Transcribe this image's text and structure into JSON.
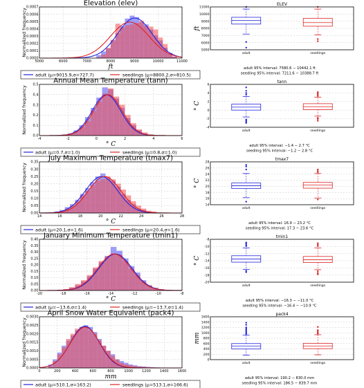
{
  "colors": {
    "adult": "#2222dd",
    "seedlings": "#dd2222",
    "adult_fill": "#4d4df2",
    "seedlings_fill": "#f04a4a"
  },
  "chart_data": [
    {
      "type": "bar",
      "title": "Elevation (elev)",
      "xlabel": "ft",
      "ylabel": "Normalized frequency",
      "xlim": [
        5000,
        11000
      ],
      "ylim": [
        0,
        0.0007
      ],
      "xticks": [
        "5000",
        "6000",
        "7000",
        "8000",
        "9000",
        "10000",
        "11000"
      ],
      "yticks": [
        "0.0000",
        "0.0001",
        "0.0002",
        "0.0003",
        "0.0004",
        "0.0005",
        "0.0006",
        "0.0007"
      ],
      "bin_edges": [
        7400,
        7600,
        7800,
        8000,
        8200,
        8400,
        8600,
        8800,
        9000,
        9200,
        9400,
        9600,
        9800,
        10000,
        10200,
        10400,
        10600,
        10800
      ],
      "series": [
        {
          "name": "adult",
          "values": [
            4e-05,
            9e-05,
            0.00013,
            0.00024,
            0.00034,
            0.00044,
            0.00054,
            0.00058,
            0.00056,
            0.00049,
            0.00046,
            0.00039,
            0.00031,
            0.00024,
            0.00014,
            7e-05,
            2e-05
          ],
          "mu": 9015.9,
          "sigma": 727.7,
          "legend": "adult (μ=9015.9,σ=727.7)"
        },
        {
          "name": "seedlings",
          "values": [
            1e-05,
            5e-05,
            0.00014,
            0.00025,
            0.00047,
            0.00042,
            0.00045,
            0.00046,
            0.00048,
            0.00051,
            0.00044,
            0.00043,
            0.00039,
            0.00028,
            0.00019,
            7e-05,
            2e-05
          ],
          "mu": 8800.2,
          "sigma": 810.5,
          "legend": "seedlings (μ=8800.2,σ=810.5)"
        }
      ]
    },
    {
      "type": "bar",
      "title": "Annual Mean Temperature (tann)",
      "xlabel": "° C",
      "ylabel": "Normalized frequency",
      "xlim": [
        -4,
        6
      ],
      "ylim": [
        0,
        0.5
      ],
      "xticks": [
        "-4",
        "-2",
        "0",
        "2",
        "4",
        "6"
      ],
      "yticks": [
        "0.0",
        "0.1",
        "0.2",
        "0.3",
        "0.4",
        "0.5"
      ],
      "bin_edges": [
        -2.4,
        -2.0,
        -1.6,
        -1.2,
        -0.8,
        -0.4,
        0.0,
        0.4,
        0.8,
        1.2,
        1.6,
        2.0,
        2.4,
        2.8,
        3.2,
        3.6,
        4.0
      ],
      "series": [
        {
          "name": "adult",
          "values": [
            0.01,
            0.02,
            0.05,
            0.1,
            0.18,
            0.27,
            0.37,
            0.47,
            0.45,
            0.36,
            0.27,
            0.17,
            0.1,
            0.05,
            0.02,
            0.01
          ],
          "mu": 0.7,
          "sigma": 1.0,
          "legend": "adult (μ=0.7,σ=1.0)"
        },
        {
          "name": "seedlings",
          "values": [
            0.01,
            0.02,
            0.04,
            0.08,
            0.14,
            0.24,
            0.33,
            0.41,
            0.46,
            0.38,
            0.3,
            0.2,
            0.12,
            0.06,
            0.03,
            0.01
          ],
          "mu": 0.8,
          "sigma": 1.0,
          "legend": "seedlings (μ=0.8,σ=1.0)"
        }
      ]
    },
    {
      "type": "bar",
      "title": "July Maximum Temperature (tmax7)",
      "xlabel": "° C",
      "ylabel": "Normalized frequency",
      "xlim": [
        14,
        28
      ],
      "ylim": [
        0,
        0.35
      ],
      "xticks": [
        "14",
        "16",
        "18",
        "20",
        "22",
        "24",
        "26",
        "28"
      ],
      "yticks": [
        "0.00",
        "0.05",
        "0.10",
        "0.15",
        "0.20",
        "0.25",
        "0.30",
        "0.35"
      ],
      "bin_edges": [
        15.5,
        16.0,
        16.5,
        17.0,
        17.5,
        18.0,
        18.5,
        19.0,
        19.5,
        20.0,
        20.5,
        21.0,
        21.5,
        22.0,
        22.5,
        23.0,
        23.5,
        24.0,
        24.5,
        25.0,
        25.5
      ],
      "series": [
        {
          "name": "adult",
          "values": [
            0.01,
            0.02,
            0.04,
            0.06,
            0.09,
            0.13,
            0.17,
            0.21,
            0.25,
            0.27,
            0.24,
            0.22,
            0.18,
            0.13,
            0.09,
            0.06,
            0.03,
            0.02,
            0.01,
            0.005
          ],
          "mu": 20.1,
          "sigma": 1.6,
          "legend": "adult (μ=20.1,σ=1.6)"
        },
        {
          "name": "seedlings",
          "values": [
            0.005,
            0.015,
            0.03,
            0.05,
            0.08,
            0.12,
            0.15,
            0.19,
            0.22,
            0.23,
            0.25,
            0.23,
            0.2,
            0.16,
            0.12,
            0.08,
            0.05,
            0.03,
            0.015,
            0.01
          ],
          "mu": 20.4,
          "sigma": 1.6,
          "legend": "seedlings (μ=20.4,σ=1.6)"
        }
      ]
    },
    {
      "type": "bar",
      "title": "January Minimum Temperature (tmin1)",
      "xlabel": "° C",
      "ylabel": "Normalized frequency",
      "xlim": [
        -20,
        -8
      ],
      "ylim": [
        0,
        0.4
      ],
      "xticks": [
        "-20",
        "-18",
        "-16",
        "-14",
        "-12",
        "-10",
        "-8"
      ],
      "yticks": [
        "0.00",
        "0.05",
        "0.10",
        "0.15",
        "0.20",
        "0.25",
        "0.30",
        "0.35",
        "0.40"
      ],
      "bin_edges": [
        -18.5,
        -18.0,
        -17.5,
        -17.0,
        -16.5,
        -16.0,
        -15.5,
        -15.0,
        -14.5,
        -14.0,
        -13.5,
        -13.0,
        -12.5,
        -12.0,
        -11.5,
        -11.0,
        -10.5,
        -10.0,
        -9.5
      ],
      "series": [
        {
          "name": "adult",
          "values": [
            0.005,
            0.01,
            0.02,
            0.04,
            0.07,
            0.11,
            0.17,
            0.22,
            0.27,
            0.34,
            0.31,
            0.25,
            0.19,
            0.14,
            0.08,
            0.04,
            0.02,
            0.01
          ],
          "mu": -13.6,
          "sigma": 1.4,
          "legend": "adult (μ=−13.6,σ=1.4)"
        },
        {
          "name": "seedlings",
          "values": [
            0.005,
            0.01,
            0.025,
            0.05,
            0.08,
            0.12,
            0.18,
            0.23,
            0.26,
            0.29,
            0.28,
            0.23,
            0.17,
            0.12,
            0.07,
            0.04,
            0.02,
            0.01
          ],
          "mu": -13.7,
          "sigma": 1.4,
          "legend": "seedlings (μ=−13.7,σ=1.4)"
        }
      ]
    },
    {
      "type": "bar",
      "title": "April Snow Water Equivalent (pack4)",
      "xlabel": "mm",
      "ylabel": "Normalized frequency",
      "xlim": [
        0,
        1600
      ],
      "ylim": [
        0,
        0.003
      ],
      "xticks": [
        "0",
        "200",
        "400",
        "600",
        "800",
        "1000",
        "1200",
        "1400",
        "1600"
      ],
      "yticks": [
        "0.0000",
        "0.0005",
        "0.0010",
        "0.0015",
        "0.0020",
        "0.0025",
        "0.0030"
      ],
      "bin_edges": [
        100,
        150,
        200,
        250,
        300,
        350,
        400,
        450,
        500,
        550,
        600,
        650,
        700,
        750,
        800,
        850,
        900,
        950,
        1000,
        1050,
        1100,
        1150,
        1200,
        1250,
        1300,
        1350,
        1400,
        1450
      ],
      "series": [
        {
          "name": "adult",
          "values": [
            0.0002,
            0.0005,
            0.0009,
            0.0013,
            0.0016,
            0.0019,
            0.0022,
            0.0024,
            0.0025,
            0.0024,
            0.0021,
            0.0017,
            0.0013,
            0.001,
            0.0008,
            0.0005,
            0.0004,
            0.0003,
            0.0002,
            0.00015,
            0.0001,
            8e-05,
            6e-05,
            4e-05,
            3e-05,
            2e-05,
            2e-05
          ],
          "mu": 510.1,
          "sigma": 163.2,
          "legend": "adult (μ=510.1,σ=163.2)"
        },
        {
          "name": "seedlings",
          "values": [
            0.0001,
            0.0004,
            0.0008,
            0.0012,
            0.0017,
            0.002,
            0.0023,
            0.0024,
            0.0024,
            0.0022,
            0.002,
            0.0016,
            0.0013,
            0.001,
            0.0007,
            0.0005,
            0.0003,
            0.0002,
            0.00015,
            0.0001,
            8e-05,
            6e-05,
            4e-05,
            3e-05,
            2e-05,
            1e-05,
            1e-05
          ],
          "mu": 513.1,
          "sigma": 166.6,
          "legend": "seedlings (μ=513.1,σ=166.6)"
        }
      ]
    },
    {
      "type": "box",
      "title": "ELEV",
      "ylabel": "ft",
      "ylim": [
        5000,
        11000
      ],
      "yticks": [
        "5000",
        "6000",
        "7000",
        "8000",
        "9000",
        "10000",
        "11000"
      ],
      "categories": [
        "adult",
        "seedlings"
      ],
      "boxes": [
        {
          "name": "adult",
          "whislo": 7200,
          "q1": 8600,
          "med": 9100,
          "q3": 9550,
          "whishi": 10700,
          "fliers": [
            5300,
            6100,
            11000
          ]
        },
        {
          "name": "seedlings",
          "whislo": 7100,
          "q1": 8300,
          "med": 8800,
          "q3": 9400,
          "whishi": 10700,
          "fliers": [
            6500,
            6200,
            11000
          ]
        }
      ],
      "interval_adult": "adult 95% interval: 7580.6 − 10442.1 ft",
      "interval_seedling": "seedling 95% interval: 7211.6 − 10388.7 ft"
    },
    {
      "type": "box",
      "title": "tann",
      "ylabel": "° C",
      "ylim": [
        -4,
        6
      ],
      "yticks": [
        "-4",
        "-2",
        "0",
        "2",
        "4",
        "6"
      ],
      "categories": [
        "adult",
        "seedlings"
      ],
      "boxes": [
        {
          "name": "adult",
          "whislo": -1.6,
          "q1": 0.0,
          "med": 0.7,
          "q3": 1.4,
          "whishi": 3.2,
          "fliers": [
            -2.4,
            -2.7,
            -3.0,
            -2.2,
            3.6,
            4.0,
            4.5,
            5.3
          ]
        },
        {
          "name": "seedlings",
          "whislo": -1.4,
          "q1": 0.1,
          "med": 0.8,
          "q3": 1.5,
          "whishi": 3.0,
          "fliers": [
            -1.8,
            -2.1,
            -2.5,
            3.3,
            3.6,
            3.9,
            4.2
          ]
        }
      ],
      "interval_adult": "adult 95% interval: −1.4 − 2.7 °C",
      "interval_seedling": "seedling 95% interval: −1.2 − 2.8 °C"
    },
    {
      "type": "box",
      "title": "tmax7",
      "ylabel": "° C",
      "ylim": [
        14,
        28
      ],
      "yticks": [
        "14",
        "16",
        "18",
        "20",
        "22",
        "24",
        "26",
        "28"
      ],
      "categories": [
        "adult",
        "seedlings"
      ],
      "boxes": [
        {
          "name": "adult",
          "whislo": 16.3,
          "q1": 19.3,
          "med": 20.2,
          "q3": 21.1,
          "whishi": 24.2,
          "fliers": [
            15.0,
            25.5,
            26.5,
            27.0
          ]
        },
        {
          "name": "seedlings",
          "whislo": 16.2,
          "q1": 19.4,
          "med": 20.4,
          "q3": 21.3,
          "whishi": 24.2,
          "fliers": [
            15.7,
            24.6,
            25.0,
            25.5
          ]
        }
      ],
      "interval_adult": "adult 95% interval: 16.9 − 23.2 °C",
      "interval_seedling": "seedling 95% interval: 17.3 − 23.6 °C"
    },
    {
      "type": "box",
      "title": "tmin1",
      "ylabel": "° C",
      "ylim": [
        -20,
        -8
      ],
      "yticks": [
        "-20",
        "-18",
        "-16",
        "-14",
        "-12",
        "-10",
        "-8"
      ],
      "categories": [
        "adult",
        "seedlings"
      ],
      "boxes": [
        {
          "name": "adult",
          "whislo": -16.4,
          "q1": -14.4,
          "med": -13.5,
          "q3": -12.6,
          "whishi": -10.4,
          "fliers": [
            -16.8,
            -17.2,
            -9.9,
            -9.6,
            -9.2,
            -8.9
          ]
        },
        {
          "name": "seedlings",
          "whislo": -16.5,
          "q1": -14.5,
          "med": -13.7,
          "q3": -12.8,
          "whishi": -10.4,
          "fliers": [
            -16.9,
            -17.4,
            -17.8,
            -9.9,
            -9.5,
            -9.1
          ]
        }
      ],
      "interval_adult": "adult 95% interval: −16.3 − −11.0 °C",
      "interval_seedling": "seedling 95% interval: −16.4 − −10.9 °C"
    },
    {
      "type": "box",
      "title": "pack4",
      "ylabel": "mm",
      "ylim": [
        0,
        1600
      ],
      "yticks": [
        "0",
        "200",
        "400",
        "600",
        "800",
        "1000",
        "1200",
        "1400",
        "1600"
      ],
      "categories": [
        "adult",
        "seedlings"
      ],
      "boxes": [
        {
          "name": "adult",
          "whislo": 170,
          "q1": 400,
          "med": 510,
          "q3": 600,
          "whishi": 920,
          "fliers": [
            960,
            1000,
            1050,
            1100,
            1150,
            1200,
            1300,
            1380
          ]
        },
        {
          "name": "seedlings",
          "whislo": 180,
          "q1": 410,
          "med": 510,
          "q3": 610,
          "whishi": 930,
          "fliers": [
            970,
            1010,
            1060,
            1100,
            1220
          ]
        }
      ],
      "interval_adult": "adult 95% interval: 190.2 − 830.0 mm",
      "interval_seedling": "seedling 95% interval: 186.5 − 839.7 mm"
    }
  ]
}
